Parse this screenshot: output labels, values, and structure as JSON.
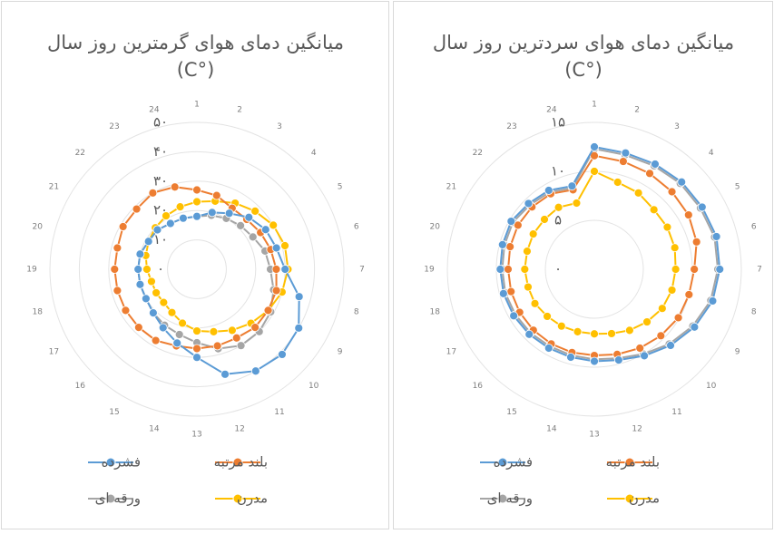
{
  "chart_data": [
    {
      "type": "radar",
      "title": "میانگین دمای هوای گرمترین روز سال (°C)",
      "categories": [
        "1",
        "2",
        "3",
        "4",
        "5",
        "6",
        "7",
        "8",
        "9",
        "10",
        "11",
        "12",
        "13",
        "14",
        "15",
        "16",
        "17",
        "18",
        "19",
        "20",
        "21",
        "22",
        "23",
        "24"
      ],
      "ylim": [
        0,
        50
      ],
      "yticks": [
        {
          "value": 0,
          "label": "۰"
        },
        {
          "value": 10,
          "label": "۱۰"
        },
        {
          "value": 20,
          "label": "۲۰"
        },
        {
          "value": 30,
          "label": "۳۰"
        },
        {
          "value": 40,
          "label": "۴۰"
        },
        {
          "value": 50,
          "label": "۵۰"
        }
      ],
      "grid": true,
      "series": [
        {
          "name": "فشرده",
          "color": "#5b9bd5",
          "values": [
            18,
            20,
            22,
            25,
            27,
            28,
            30,
            36,
            40,
            41,
            40,
            37,
            30,
            26,
            23,
            21,
            20,
            20,
            20,
            20,
            19,
            19,
            18,
            18
          ]
        },
        {
          "name": "بلند مرتبه",
          "color": "#ed7d31",
          "values": [
            27,
            26,
            24,
            24,
            25,
            26,
            27,
            28,
            28,
            28,
            27,
            27,
            27,
            27,
            28,
            28,
            28,
            28,
            28,
            28,
            29,
            29,
            30,
            29
          ]
        },
        {
          "name": "ورقه ای",
          "color": "#a5a5a5",
          "values": [
            18,
            19,
            20,
            21,
            22,
            24,
            25,
            27,
            29,
            30,
            30,
            28,
            25,
            23,
            22,
            21,
            20,
            20,
            20,
            20,
            19,
            19,
            18,
            18
          ]
        },
        {
          "name": "مدرن",
          "color": "#ffc000",
          "values": [
            23,
            24,
            26,
            28,
            30,
            31,
            31,
            30,
            28,
            26,
            24,
            22,
            21,
            19,
            17,
            16,
            16,
            16,
            17,
            18,
            19,
            20,
            21,
            22
          ]
        }
      ]
    },
    {
      "type": "radar",
      "title": "میانگین دمای هوای سردترین روز سال (°C)",
      "categories": [
        "1",
        "2",
        "3",
        "4",
        "5",
        "6",
        "7",
        "8",
        "9",
        "10",
        "11",
        "12",
        "13",
        "14",
        "15",
        "16",
        "17",
        "18",
        "19",
        "20",
        "21",
        "22",
        "23",
        "24"
      ],
      "ylim": [
        0,
        15
      ],
      "yticks": [
        {
          "value": 0,
          "label": "۰"
        },
        {
          "value": 5,
          "label": "۵"
        },
        {
          "value": 10,
          "label": "۱۰"
        },
        {
          "value": 15,
          "label": "۱۵"
        }
      ],
      "grid": true,
      "series": [
        {
          "name": "فشرده",
          "color": "#5b9bd5",
          "values": [
            12.5,
            12.3,
            12.4,
            12.6,
            12.7,
            12.9,
            12.8,
            12.5,
            11.8,
            11,
            10.2,
            9.6,
            9.4,
            9.3,
            9.3,
            9.4,
            9.5,
            9.6,
            9.6,
            9.7,
            9.8,
            9.5,
            9.3,
            8.8
          ]
        },
        {
          "name": "بلند مرتبه",
          "color": "#ed7d31",
          "values": [
            11.6,
            11.4,
            11.3,
            11.2,
            11.1,
            10.8,
            10.2,
            10,
            9.9,
            9.6,
            9.3,
            9,
            8.8,
            8.8,
            8.8,
            8.8,
            8.8,
            8.8,
            8.8,
            8.9,
            9,
            9,
            8.9,
            8.4
          ]
        },
        {
          "name": "ورقه ای",
          "color": "#a5a5a5",
          "values": [
            12.3,
            12.1,
            12.2,
            12.4,
            12.5,
            12.7,
            12.6,
            12.3,
            11.6,
            10.8,
            10,
            9.4,
            9.2,
            9.1,
            9.1,
            9.2,
            9.3,
            9.4,
            9.4,
            9.5,
            9.6,
            9.3,
            9.1,
            8.6
          ]
        },
        {
          "name": "مدرن",
          "color": "#ffc000",
          "values": [
            10,
            9.2,
            9,
            8.6,
            8.6,
            8.5,
            8.3,
            8.2,
            8,
            7.6,
            7.2,
            6.8,
            6.6,
            6.6,
            6.7,
            6.8,
            7,
            7,
            7.1,
            7.1,
            7.2,
            7.2,
            7.3,
            7
          ]
        }
      ]
    }
  ]
}
